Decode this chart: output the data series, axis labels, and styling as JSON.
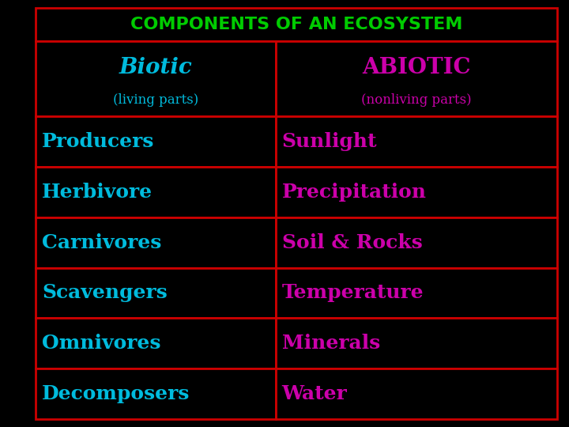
{
  "title": "COMPONENTS OF AN ECOSYSTEM",
  "title_color": "#00cc00",
  "background_color": "#000000",
  "border_color": "#cc0000",
  "col1_header": "Biotic",
  "col1_subheader": "(living parts)",
  "col2_header": "ABIOTIC",
  "col2_subheader": "(nonliving parts)",
  "header_color_col1": "#00bbdd",
  "header_color_col2": "#cc00aa",
  "col1_items": [
    "Producers",
    "Herbivore",
    "Carnivores",
    "Scavengers",
    "Omnivores",
    "Decomposers"
  ],
  "col2_items": [
    "Sunlight",
    "Precipitation",
    "Soil & Rocks",
    "Temperature",
    "Minerals",
    "Water"
  ],
  "col1_item_color": "#00bbdd",
  "col2_item_color": "#cc00aa",
  "title_fontsize": 16,
  "header_fontsize": 20,
  "subheader_fontsize": 12,
  "item_fontsize": 18
}
